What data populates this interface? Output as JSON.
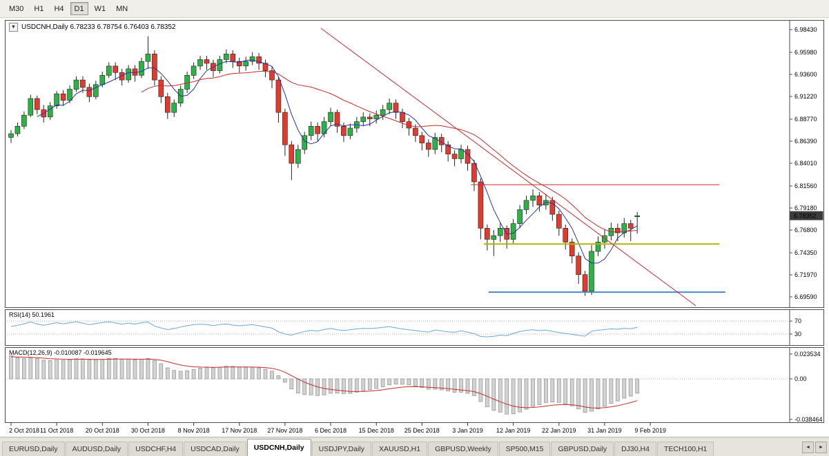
{
  "toolbar": {
    "timeframes": [
      {
        "label": "M30",
        "active": false
      },
      {
        "label": "H1",
        "active": false
      },
      {
        "label": "H4",
        "active": false
      },
      {
        "label": "D1",
        "active": true
      },
      {
        "label": "W1",
        "active": false
      },
      {
        "label": "MN",
        "active": false
      }
    ]
  },
  "chart": {
    "title": "USDCNH,Daily 6.78233 6.78754 6.76403 6.78352",
    "symbol": "USDCNH,Daily",
    "ohlc_values": [
      "6.78233",
      "6.78754",
      "6.76403",
      "6.78352"
    ],
    "current_price": "6.78352",
    "price_scale": [
      "6.98430",
      "6.95980",
      "6.93600",
      "6.91220",
      "6.88770",
      "6.86390",
      "6.84010",
      "6.81560",
      "6.79180",
      "6.76800",
      "6.74350",
      "6.71970",
      "6.69590"
    ],
    "up_color": "#2db245",
    "down_color": "#e23b2e",
    "wick_color": "#222222",
    "badge_color": "#3c3c3c",
    "ma_fast": {
      "period": 5,
      "color": "#2633a8"
    },
    "ma_slow": {
      "period": 21,
      "color": "#c92a2a"
    },
    "hlines": [
      {
        "price": 6.817,
        "i1": 70.5,
        "i2": 108.6,
        "color": "#c92a2a",
        "width": 1
      },
      {
        "price": 6.753,
        "i1": 72.5,
        "i2": 108.6,
        "color": "#b5b500",
        "width": 2
      },
      {
        "price": 6.701,
        "i1": 73.2,
        "i2": 109.5,
        "color": "#4a86c8",
        "width": 2
      }
    ],
    "trendlines": [
      {
        "i1": 47.5,
        "p1": 6.9858,
        "i2": 105.0,
        "p2": 6.6862,
        "color": "#c92a2a",
        "width": 1
      }
    ],
    "candles": [
      [
        6.868,
        6.876,
        6.862,
        6.872
      ],
      [
        6.872,
        6.884,
        6.869,
        6.88
      ],
      [
        6.88,
        6.896,
        6.877,
        6.892
      ],
      [
        6.892,
        6.914,
        6.89,
        6.91
      ],
      [
        6.91,
        6.913,
        6.893,
        6.898
      ],
      [
        6.898,
        6.903,
        6.884,
        6.89
      ],
      [
        6.89,
        6.906,
        6.887,
        6.902
      ],
      [
        6.902,
        6.918,
        6.899,
        6.915
      ],
      [
        6.915,
        6.919,
        6.902,
        6.908
      ],
      [
        6.908,
        6.924,
        6.905,
        6.92
      ],
      [
        6.92,
        6.934,
        6.917,
        6.93
      ],
      [
        6.93,
        6.934,
        6.916,
        6.922
      ],
      [
        6.922,
        6.926,
        6.906,
        6.912
      ],
      [
        6.912,
        6.929,
        6.909,
        6.925
      ],
      [
        6.925,
        6.939,
        6.922,
        6.935
      ],
      [
        6.935,
        6.949,
        6.932,
        6.945
      ],
      [
        6.945,
        6.949,
        6.93,
        6.938
      ],
      [
        6.938,
        6.942,
        6.924,
        6.93
      ],
      [
        6.93,
        6.946,
        6.927,
        6.942
      ],
      [
        6.942,
        6.946,
        6.928,
        6.935
      ],
      [
        6.935,
        6.954,
        6.932,
        6.95
      ],
      [
        6.95,
        6.977,
        6.942,
        6.958
      ],
      [
        6.958,
        6.962,
        6.924,
        6.93
      ],
      [
        6.93,
        6.934,
        6.905,
        6.912
      ],
      [
        6.912,
        6.916,
        6.888,
        6.895
      ],
      [
        6.895,
        6.909,
        6.89,
        6.905
      ],
      [
        6.905,
        6.924,
        6.901,
        6.92
      ],
      [
        6.92,
        6.939,
        6.916,
        6.935
      ],
      [
        6.935,
        6.949,
        6.931,
        6.945
      ],
      [
        6.945,
        6.956,
        6.941,
        6.952
      ],
      [
        6.952,
        6.956,
        6.941,
        6.948
      ],
      [
        6.948,
        6.952,
        6.933,
        6.94
      ],
      [
        6.94,
        6.956,
        6.937,
        6.952
      ],
      [
        6.952,
        6.963,
        6.948,
        6.958
      ],
      [
        6.958,
        6.962,
        6.943,
        6.95
      ],
      [
        6.95,
        6.954,
        6.938,
        6.945
      ],
      [
        6.945,
        6.955,
        6.94,
        6.95
      ],
      [
        6.95,
        6.96,
        6.946,
        6.955
      ],
      [
        6.955,
        6.959,
        6.941,
        6.948
      ],
      [
        6.948,
        6.952,
        6.933,
        6.94
      ],
      [
        6.94,
        6.944,
        6.921,
        6.93
      ],
      [
        6.93,
        6.933,
        6.884,
        6.895
      ],
      [
        6.895,
        6.899,
        6.848,
        6.86
      ],
      [
        6.86,
        6.864,
        6.822,
        6.84
      ],
      [
        6.84,
        6.86,
        6.835,
        6.855
      ],
      [
        6.855,
        6.874,
        6.85,
        6.87
      ],
      [
        6.87,
        6.885,
        6.865,
        6.88
      ],
      [
        6.88,
        6.884,
        6.864,
        6.872
      ],
      [
        6.872,
        6.89,
        6.868,
        6.885
      ],
      [
        6.885,
        6.9,
        6.88,
        6.895
      ],
      [
        6.895,
        6.898,
        6.873,
        6.88
      ],
      [
        6.88,
        6.884,
        6.863,
        6.87
      ],
      [
        6.87,
        6.883,
        6.866,
        6.878
      ],
      [
        6.878,
        6.89,
        6.873,
        6.885
      ],
      [
        6.885,
        6.895,
        6.88,
        6.89
      ],
      [
        6.89,
        6.894,
        6.88,
        6.888
      ],
      [
        6.888,
        6.897,
        6.883,
        6.892
      ],
      [
        6.892,
        6.903,
        6.887,
        6.898
      ],
      [
        6.898,
        6.91,
        6.893,
        6.905
      ],
      [
        6.905,
        6.909,
        6.888,
        6.895
      ],
      [
        6.895,
        6.899,
        6.878,
        6.885
      ],
      [
        6.885,
        6.889,
        6.87,
        6.878
      ],
      [
        6.878,
        6.882,
        6.863,
        6.87
      ],
      [
        6.87,
        6.874,
        6.854,
        6.862
      ],
      [
        6.862,
        6.866,
        6.847,
        6.855
      ],
      [
        6.855,
        6.873,
        6.85,
        6.868
      ],
      [
        6.868,
        6.872,
        6.852,
        6.86
      ],
      [
        6.86,
        6.864,
        6.842,
        6.85
      ],
      [
        6.85,
        6.854,
        6.837,
        6.845
      ],
      [
        6.845,
        6.86,
        6.84,
        6.855
      ],
      [
        6.855,
        6.859,
        6.832,
        6.84
      ],
      [
        6.84,
        6.844,
        6.81,
        6.82
      ],
      [
        6.82,
        6.824,
        6.758,
        6.77
      ],
      [
        6.77,
        6.774,
        6.746,
        6.758
      ],
      [
        6.758,
        6.768,
        6.74,
        6.762
      ],
      [
        6.762,
        6.776,
        6.755,
        6.77
      ],
      [
        6.77,
        6.773,
        6.748,
        6.758
      ],
      [
        6.758,
        6.78,
        6.753,
        6.775
      ],
      [
        6.775,
        6.795,
        6.77,
        6.79
      ],
      [
        6.79,
        6.805,
        6.785,
        6.8
      ],
      [
        6.8,
        6.812,
        6.793,
        6.805
      ],
      [
        6.805,
        6.809,
        6.788,
        6.795
      ],
      [
        6.795,
        6.807,
        6.79,
        6.8
      ],
      [
        6.8,
        6.804,
        6.778,
        6.785
      ],
      [
        6.785,
        6.789,
        6.762,
        6.77
      ],
      [
        6.77,
        6.774,
        6.747,
        6.755
      ],
      [
        6.755,
        6.759,
        6.732,
        6.74
      ],
      [
        6.74,
        6.744,
        6.71,
        6.72
      ],
      [
        6.72,
        6.724,
        6.697,
        6.702
      ],
      [
        6.702,
        6.752,
        6.698,
        6.745
      ],
      [
        6.745,
        6.761,
        6.74,
        6.755
      ],
      [
        6.755,
        6.769,
        6.748,
        6.762
      ],
      [
        6.762,
        6.776,
        6.757,
        6.77
      ],
      [
        6.77,
        6.775,
        6.756,
        6.765
      ],
      [
        6.765,
        6.781,
        6.76,
        6.775
      ],
      [
        6.775,
        6.779,
        6.756,
        6.77
      ],
      [
        6.78233,
        6.78754,
        6.76403,
        6.78352
      ]
    ]
  },
  "rsi": {
    "label": "RSI(14) 50.1961",
    "period": 14,
    "levels": [
      "70",
      "30"
    ],
    "color": "#6aa7d8"
  },
  "macd": {
    "label": "MACD(12,26,9) -0.010087 -0.019645",
    "scale": [
      "0.023534",
      "0.00",
      "-0.038464"
    ],
    "hist_fill": "#d2d2d2",
    "hist_stroke": "#8e8e8e",
    "signal_color": "#c92a2a"
  },
  "time_axis": {
    "labels": [
      {
        "t": "2 Oct 2018",
        "i": 0
      },
      {
        "t": "11 Oct 2018",
        "i": 7
      },
      {
        "t": "20 Oct 2018",
        "i": 14
      },
      {
        "t": "30 Oct 2018",
        "i": 21
      },
      {
        "t": "8 Nov 2018",
        "i": 28
      },
      {
        "t": "17 Nov 2018",
        "i": 35
      },
      {
        "t": "27 Nov 2018",
        "i": 42
      },
      {
        "t": "6 Dec 2018",
        "i": 49
      },
      {
        "t": "15 Dec 2018",
        "i": 56
      },
      {
        "t": "25 Dec 2018",
        "i": 63
      },
      {
        "t": "3 Jan 2019",
        "i": 70
      },
      {
        "t": "12 Jan 2019",
        "i": 77
      },
      {
        "t": "22 Jan 2019",
        "i": 84
      },
      {
        "t": "31 Jan 2019",
        "i": 91
      },
      {
        "t": "9 Feb 2019",
        "i": 98
      }
    ]
  },
  "tabs": {
    "items": [
      {
        "label": "EURUSD,Daily",
        "active": false
      },
      {
        "label": "AUDUSD,Daily",
        "active": false
      },
      {
        "label": "USDCHF,H4",
        "active": false
      },
      {
        "label": "USDCAD,Daily",
        "active": false
      },
      {
        "label": "USDCNH,Daily",
        "active": true
      },
      {
        "label": "USDJPY,Daily",
        "active": false
      },
      {
        "label": "XAUUSD,H1",
        "active": false
      },
      {
        "label": "GBPUSD,Weekly",
        "active": false
      },
      {
        "label": "SP500,M15",
        "active": false
      },
      {
        "label": "GBPUSD,Daily",
        "active": false
      },
      {
        "label": "DJ30,H4",
        "active": false
      },
      {
        "label": "TECH100,H1",
        "active": false
      }
    ],
    "scroll_left": "◄",
    "scroll_right": "►"
  }
}
